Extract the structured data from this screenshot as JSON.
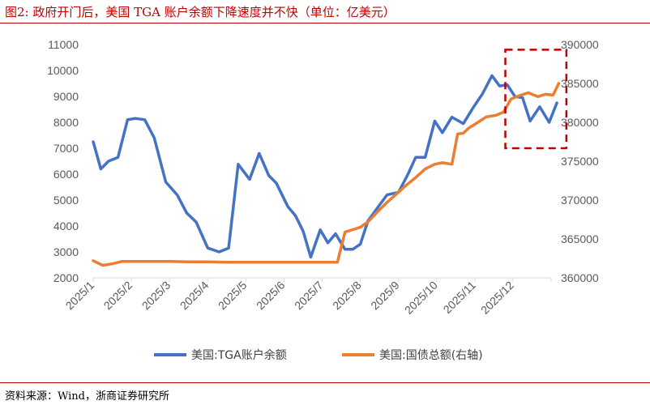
{
  "figure_title": "图2:  政府开门后，美国 TGA 账户余额下降速度并不快（单位：亿美元）",
  "source": "资料来源：Wind，浙商证券研究所",
  "colors": {
    "series_tga": "#4472c4",
    "series_debt": "#ed7d31",
    "highlight_box": "#c00000",
    "title": "#c00000",
    "axis_text": "#595959"
  },
  "chart_data": {
    "type": "line",
    "x_ticks": [
      "2025/1",
      "2025/2",
      "2025/3",
      "2025/4",
      "2025/5",
      "2025/6",
      "2025/7",
      "2025/8",
      "2025/9",
      "2025/10",
      "2025/11",
      "2025/12"
    ],
    "x_range": [
      0,
      12
    ],
    "y_left": {
      "ylim": [
        2000,
        11000
      ],
      "ticks": [
        2000,
        3000,
        4000,
        5000,
        6000,
        7000,
        8000,
        9000,
        10000,
        11000
      ]
    },
    "y_right": {
      "ylim": [
        360000,
        390000
      ],
      "ticks": [
        360000,
        365000,
        370000,
        375000,
        380000,
        385000,
        390000
      ]
    },
    "legend_position": "bottom",
    "highlight_box": {
      "x_start": 10.8,
      "x_end": 12.4,
      "y_left_top": 10800,
      "y_left_bottom": 7000
    },
    "series": [
      {
        "name": "美国:TGA账户余额",
        "axis": "left",
        "x": [
          0,
          0.2,
          0.4,
          0.65,
          0.9,
          1.1,
          1.35,
          1.6,
          1.9,
          2.2,
          2.45,
          2.7,
          3.0,
          3.3,
          3.55,
          3.8,
          4.1,
          4.35,
          4.6,
          4.8,
          5.1,
          5.3,
          5.5,
          5.7,
          5.95,
          6.15,
          6.35,
          6.6,
          6.8,
          7.0,
          7.2,
          7.5,
          7.7,
          8.0,
          8.25,
          8.45,
          8.7,
          8.95,
          9.15,
          9.4,
          9.7,
          9.95,
          10.2,
          10.45,
          10.65,
          10.85,
          11.05,
          11.25,
          11.45,
          11.7,
          11.95,
          12.15
        ],
        "values": [
          7250,
          6200,
          6500,
          6650,
          8100,
          8150,
          8100,
          7400,
          5700,
          5200,
          4500,
          4150,
          3150,
          3000,
          3150,
          6380,
          5800,
          6800,
          5950,
          5650,
          4750,
          4400,
          3800,
          2800,
          3850,
          3350,
          3700,
          3100,
          3100,
          3300,
          4200,
          4800,
          5200,
          5300,
          6000,
          6650,
          6650,
          8050,
          7600,
          8200,
          7950,
          8550,
          9100,
          9800,
          9400,
          9450,
          9000,
          8950,
          8050,
          8600,
          8000,
          8750
        ]
      },
      {
        "name": "美国:国债总额(右轴)",
        "axis": "right",
        "x": [
          0,
          0.25,
          0.5,
          0.75,
          1.0,
          1.5,
          2.0,
          2.5,
          3.0,
          3.5,
          4.0,
          4.5,
          5.0,
          5.5,
          6.0,
          6.4,
          6.6,
          6.8,
          7.0,
          7.2,
          7.45,
          7.7,
          7.95,
          8.2,
          8.45,
          8.7,
          8.95,
          9.15,
          9.4,
          9.55,
          9.7,
          9.85,
          10.05,
          10.3,
          10.55,
          10.75,
          10.95,
          11.15,
          11.4,
          11.65,
          11.85,
          12.05,
          12.2
        ],
        "values": [
          362200,
          361600,
          361800,
          362100,
          362100,
          362100,
          362100,
          362050,
          362050,
          362000,
          362000,
          362000,
          362000,
          362000,
          362000,
          362000,
          365900,
          366200,
          366500,
          367200,
          368500,
          369700,
          370800,
          371900,
          372900,
          374000,
          374600,
          374800,
          374600,
          378500,
          378600,
          379300,
          379900,
          380700,
          380900,
          381300,
          383000,
          383400,
          383800,
          383300,
          383600,
          383500,
          385000
        ]
      }
    ]
  }
}
